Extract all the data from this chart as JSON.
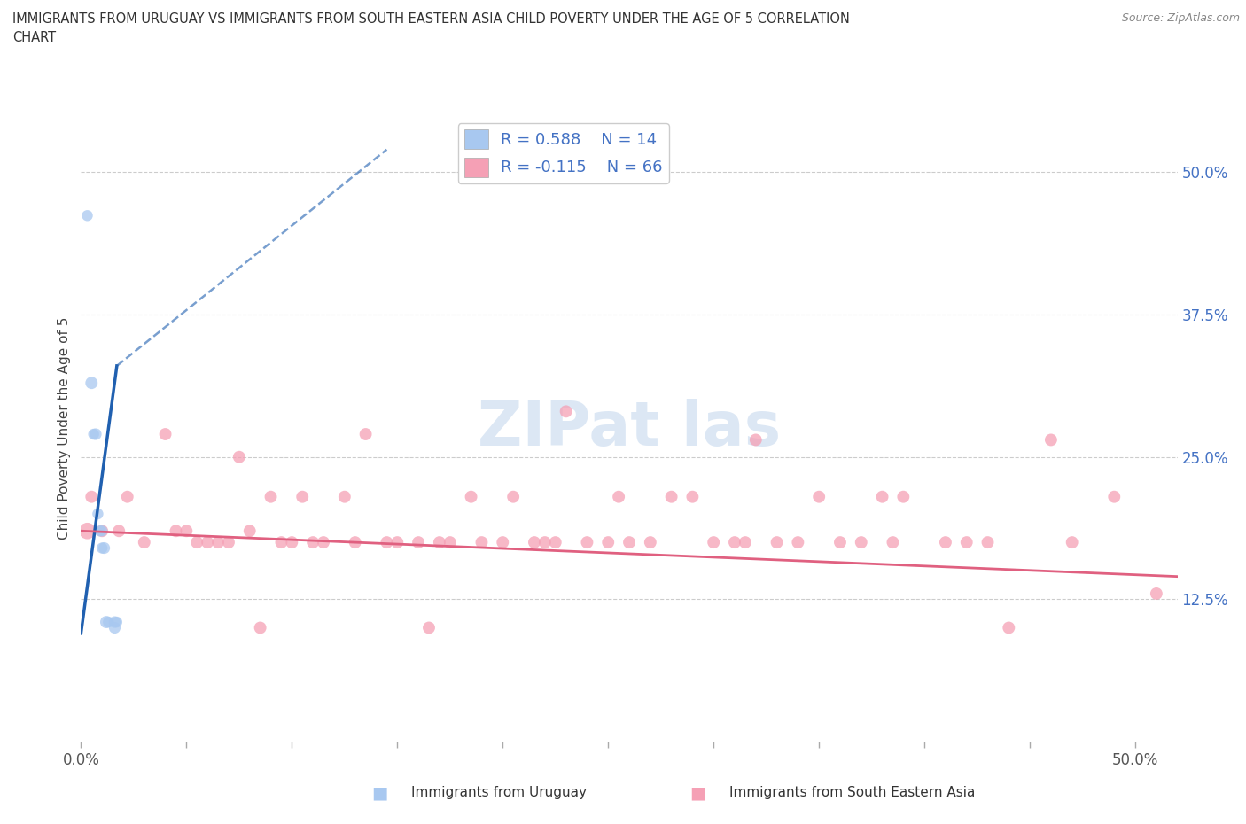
{
  "title_line1": "IMMIGRANTS FROM URUGUAY VS IMMIGRANTS FROM SOUTH EASTERN ASIA CHILD POVERTY UNDER THE AGE OF 5 CORRELATION",
  "title_line2": "CHART",
  "source": "Source: ZipAtlas.com",
  "xlabel_left": "Immigrants from Uruguay",
  "xlabel_right": "Immigrants from South Eastern Asia",
  "ylabel": "Child Poverty Under the Age of 5",
  "xlim": [
    0.0,
    0.52
  ],
  "ylim": [
    0.0,
    0.55
  ],
  "yticks_right": [
    0.125,
    0.25,
    0.375,
    0.5
  ],
  "ytick_labels_right": [
    "12.5%",
    "25.0%",
    "37.5%",
    "50.0%"
  ],
  "color_uruguay": "#a8c8f0",
  "color_sea": "#f5a0b5",
  "color_trendline_uruguay": "#2060b0",
  "color_trendline_sea": "#e06080",
  "watermark_color": "#c5d8ee",
  "background_color": "#ffffff",
  "grid_color": "#cccccc",
  "uruguay_x": [
    0.003,
    0.005,
    0.006,
    0.007,
    0.008,
    0.009,
    0.01,
    0.01,
    0.011,
    0.012,
    0.013,
    0.016,
    0.016,
    0.017
  ],
  "uruguay_y": [
    0.462,
    0.315,
    0.27,
    0.27,
    0.2,
    0.185,
    0.185,
    0.17,
    0.17,
    0.105,
    0.105,
    0.105,
    0.1,
    0.105
  ],
  "uruguay_sizes": [
    80,
    100,
    80,
    90,
    80,
    80,
    80,
    80,
    90,
    100,
    80,
    90,
    90,
    80
  ],
  "sea_x": [
    0.003,
    0.005,
    0.01,
    0.018,
    0.022,
    0.03,
    0.04,
    0.045,
    0.05,
    0.055,
    0.06,
    0.065,
    0.07,
    0.075,
    0.08,
    0.085,
    0.09,
    0.095,
    0.1,
    0.105,
    0.11,
    0.115,
    0.125,
    0.13,
    0.135,
    0.145,
    0.15,
    0.16,
    0.165,
    0.17,
    0.175,
    0.185,
    0.19,
    0.2,
    0.205,
    0.215,
    0.22,
    0.225,
    0.23,
    0.24,
    0.25,
    0.255,
    0.26,
    0.27,
    0.28,
    0.29,
    0.3,
    0.31,
    0.315,
    0.32,
    0.33,
    0.34,
    0.35,
    0.36,
    0.37,
    0.38,
    0.385,
    0.39,
    0.41,
    0.42,
    0.43,
    0.44,
    0.46,
    0.47,
    0.49,
    0.51
  ],
  "sea_y": [
    0.185,
    0.215,
    0.185,
    0.185,
    0.215,
    0.175,
    0.27,
    0.185,
    0.185,
    0.175,
    0.175,
    0.175,
    0.175,
    0.25,
    0.185,
    0.1,
    0.215,
    0.175,
    0.175,
    0.215,
    0.175,
    0.175,
    0.215,
    0.175,
    0.27,
    0.175,
    0.175,
    0.175,
    0.1,
    0.175,
    0.175,
    0.215,
    0.175,
    0.175,
    0.215,
    0.175,
    0.175,
    0.175,
    0.29,
    0.175,
    0.175,
    0.215,
    0.175,
    0.175,
    0.215,
    0.215,
    0.175,
    0.175,
    0.175,
    0.265,
    0.175,
    0.175,
    0.215,
    0.175,
    0.175,
    0.215,
    0.175,
    0.215,
    0.175,
    0.175,
    0.175,
    0.1,
    0.265,
    0.175,
    0.215,
    0.13
  ],
  "sea_sizes": [
    180,
    100,
    100,
    100,
    100,
    100,
    100,
    100,
    100,
    100,
    100,
    100,
    100,
    100,
    100,
    100,
    100,
    100,
    100,
    100,
    100,
    100,
    100,
    100,
    100,
    100,
    100,
    100,
    100,
    100,
    100,
    100,
    100,
    100,
    100,
    100,
    100,
    100,
    100,
    100,
    100,
    100,
    100,
    100,
    100,
    100,
    100,
    100,
    100,
    100,
    100,
    100,
    100,
    100,
    100,
    100,
    100,
    100,
    100,
    100,
    100,
    100,
    100,
    100,
    100,
    100
  ],
  "trendline_uru_x0": 0.0,
  "trendline_uru_x1": 0.017,
  "trendline_uru_y0": 0.095,
  "trendline_uru_y1": 0.33,
  "trendline_uru_dash_x0": 0.017,
  "trendline_uru_dash_x1": 0.145,
  "trendline_uru_dash_y0": 0.33,
  "trendline_uru_dash_y1": 0.52,
  "trendline_sea_x0": 0.0,
  "trendline_sea_x1": 0.52,
  "trendline_sea_y0": 0.185,
  "trendline_sea_y1": 0.145
}
